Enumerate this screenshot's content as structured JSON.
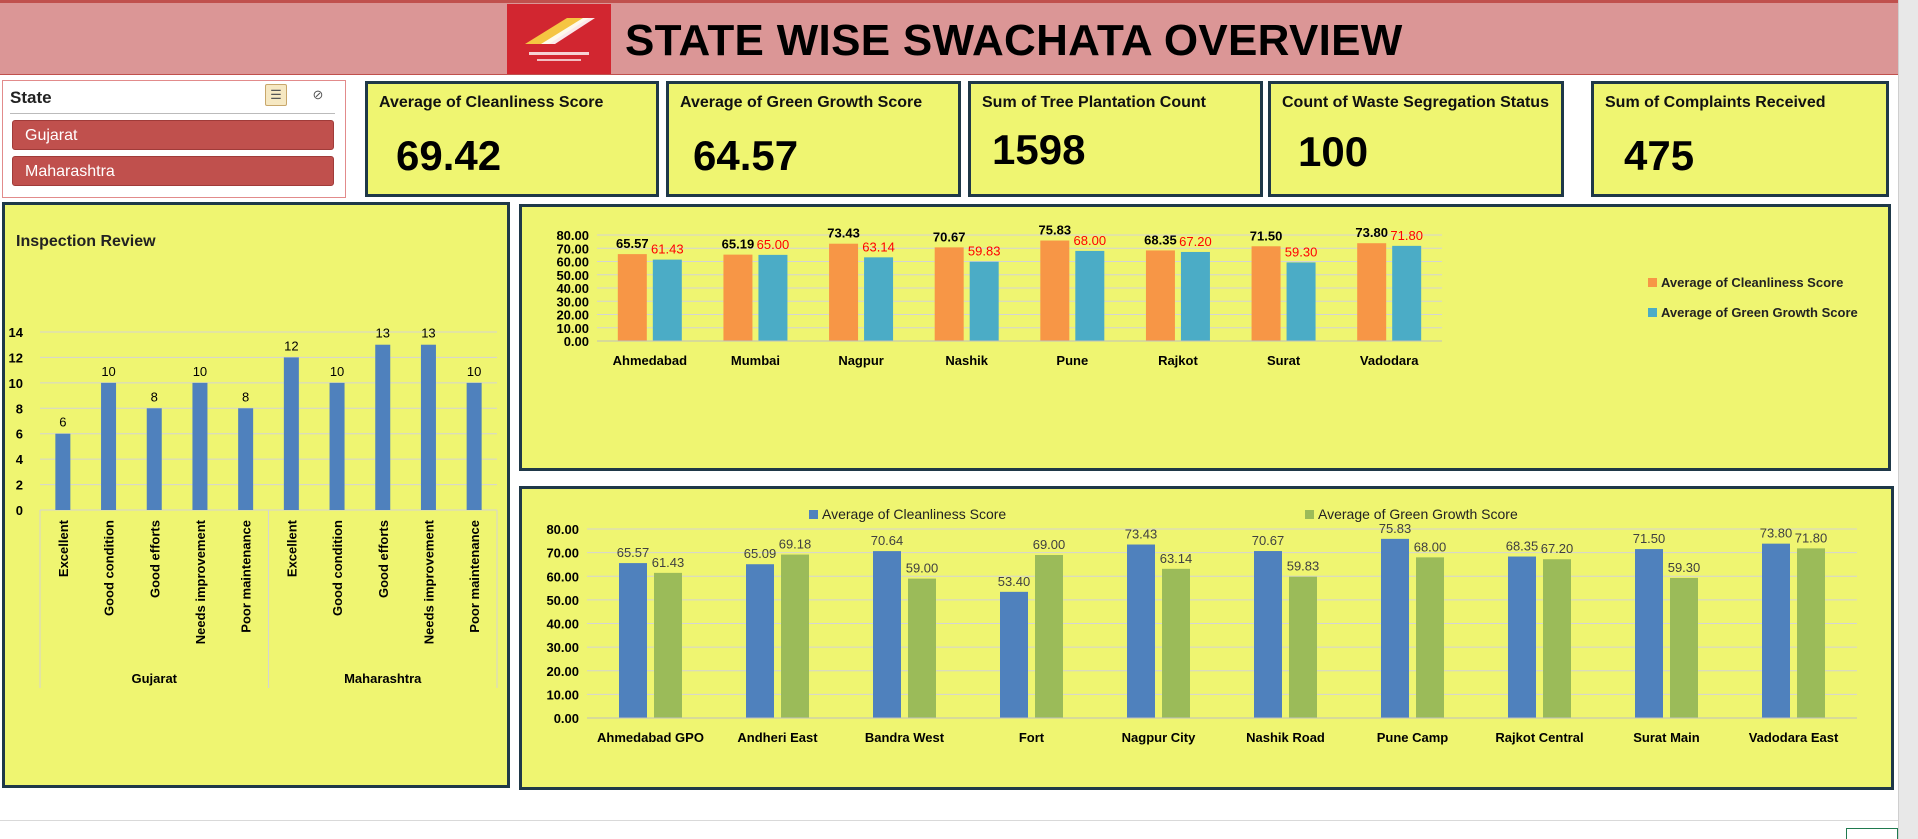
{
  "header": {
    "title": "STATE WISE SWACHATA OVERVIEW",
    "logo_icon": "india-post-logo",
    "color": "#db9696"
  },
  "slicer": {
    "title": "State",
    "items": [
      "Gujarat",
      "Maharashtra"
    ]
  },
  "kpis": [
    {
      "label": "Average of Cleanliness Score",
      "value": "69.42"
    },
    {
      "label": "Average of Green Growth Score",
      "value": "64.57"
    },
    {
      "label": "Sum of Tree Plantation Count",
      "value": "1598"
    },
    {
      "label": "Count of Waste Segregation Status",
      "value": "100"
    },
    {
      "label": "Sum of Complaints Received",
      "value": "475"
    }
  ],
  "chart_data": [
    {
      "type": "bar",
      "title": "Inspection Review",
      "groups": [
        {
          "name": "Gujarat",
          "categories": [
            "Excellent",
            "Good condition",
            "Good efforts",
            "Needs improvement",
            "Poor maintenance"
          ],
          "values": [
            6,
            10,
            8,
            10,
            8
          ]
        },
        {
          "name": "Maharashtra",
          "categories": [
            "Excellent",
            "Good condition",
            "Good efforts",
            "Needs improvement",
            "Poor maintenance"
          ],
          "values": [
            12,
            10,
            13,
            13,
            10
          ]
        }
      ],
      "ylim": [
        0,
        14
      ],
      "yticks": [
        "0",
        "2",
        "4",
        "6",
        "8",
        "10",
        "12",
        "14"
      ],
      "color": "#4f81bd",
      "grid": true
    },
    {
      "type": "bar",
      "categories": [
        "Ahmedabad",
        "Mumbai",
        "Nagpur",
        "Nashik",
        "Pune",
        "Rajkot",
        "Surat",
        "Vadodara"
      ],
      "series": [
        {
          "name": "Average of Cleanliness Score",
          "values": [
            65.57,
            65.19,
            73.43,
            70.67,
            75.83,
            68.35,
            71.5,
            73.8
          ],
          "labels": [
            "65.57",
            "65.19",
            "73.43",
            "70.67",
            "75.83",
            "68.35",
            "71.50",
            "73.80"
          ],
          "color": "#f79646",
          "label_color": "#000000"
        },
        {
          "name": "Average of Green Growth Score",
          "values": [
            61.43,
            65.0,
            63.14,
            59.83,
            68.0,
            67.2,
            59.3,
            71.8
          ],
          "labels": [
            "61.43",
            "65.00",
            "63.14",
            "59.83",
            "68.00",
            "67.20",
            "59.30",
            "71.80"
          ],
          "color": "#4bacc6",
          "label_color": "#ff0000"
        }
      ],
      "ylim": [
        0,
        80
      ],
      "yticks": [
        "0.00",
        "10.00",
        "20.00",
        "30.00",
        "40.00",
        "50.00",
        "60.00",
        "70.00",
        "80.00"
      ],
      "legend": "right",
      "grid": true
    },
    {
      "type": "bar",
      "categories": [
        "Ahmedabad GPO",
        "Andheri East",
        "Bandra West",
        "Fort",
        "Nagpur City",
        "Nashik Road",
        "Pune Camp",
        "Rajkot Central",
        "Surat Main",
        "Vadodara East"
      ],
      "series": [
        {
          "name": "Average of Cleanliness Score",
          "values": [
            65.57,
            65.09,
            70.64,
            53.4,
            73.43,
            70.67,
            75.83,
            68.35,
            71.5,
            73.8
          ],
          "labels": [
            "65.57",
            "65.09",
            "70.64",
            "53.40",
            "73.43",
            "70.67",
            "75.83",
            "68.35",
            "71.50",
            "73.80"
          ],
          "color": "#4f81bd",
          "label_color": "#404040"
        },
        {
          "name": "Average of Green Growth Score",
          "values": [
            61.43,
            69.18,
            59.0,
            69.0,
            63.14,
            59.83,
            68.0,
            67.2,
            59.3,
            71.8
          ],
          "labels": [
            "61.43",
            "69.18",
            "59.00",
            "69.00",
            "63.14",
            "59.83",
            "68.00",
            "67.20",
            "59.30",
            "71.80"
          ],
          "color": "#9bbb59",
          "label_color": "#404040"
        }
      ],
      "ylim": [
        0,
        80
      ],
      "yticks": [
        "0.00",
        "10.00",
        "20.00",
        "30.00",
        "40.00",
        "50.00",
        "60.00",
        "70.00",
        "80.00"
      ],
      "legend": "top",
      "grid": true
    }
  ]
}
